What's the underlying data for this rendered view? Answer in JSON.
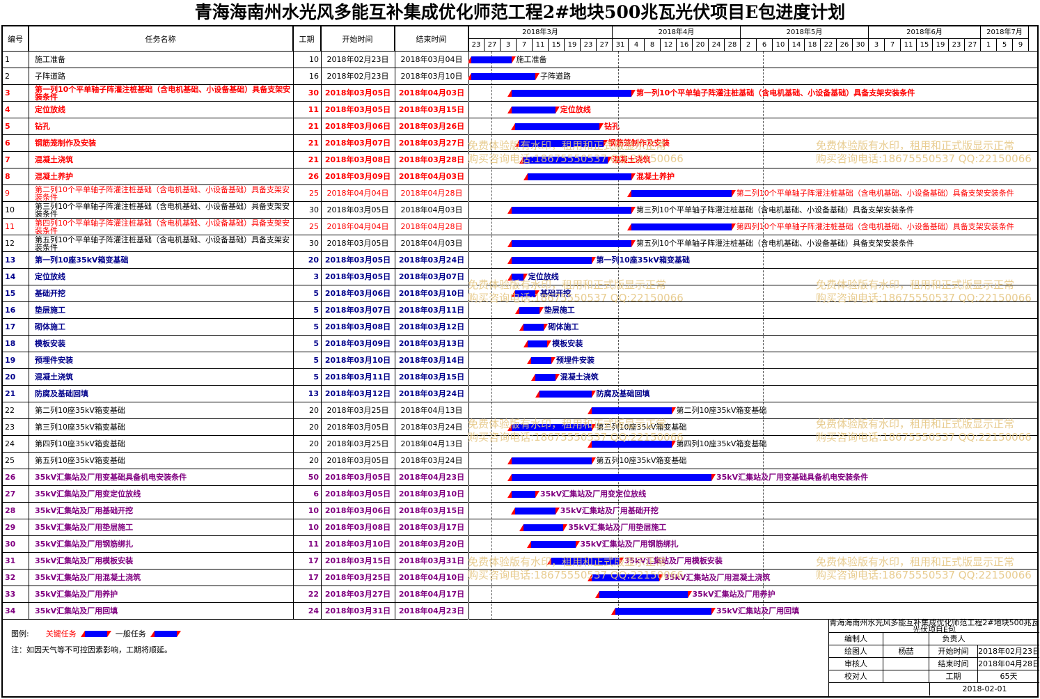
{
  "title": "青海海南州水光风多能互补集成优化师范工程2#地块500兆瓦光伏项目E包进度计划",
  "columns": {
    "id": "编号",
    "name": "任务名称",
    "duration": "工期",
    "start": "开始时间",
    "end": "结束时间"
  },
  "months": [
    {
      "label": "2018年3月",
      "days": [
        "23",
        "27",
        "3",
        "7",
        "11",
        "15",
        "19",
        "23",
        "27"
      ]
    },
    {
      "label": "2018年4月",
      "days": [
        "31",
        "4",
        "8",
        "12",
        "16",
        "20",
        "24",
        "28"
      ]
    },
    {
      "label": "2018年5月",
      "days": [
        "2",
        "6",
        "10",
        "14",
        "18",
        "22",
        "26",
        "30"
      ]
    },
    {
      "label": "2018年6月",
      "days": [
        "3",
        "7",
        "11",
        "15",
        "19",
        "23",
        "27"
      ]
    },
    {
      "label": "2018年7月",
      "days": [
        "1",
        "5",
        "9"
      ]
    }
  ],
  "tasks": [
    {
      "id": "1",
      "name": "施工准备",
      "duration": "10",
      "start": "2018年02月23日",
      "end": "2018年03月04日",
      "style": "normal",
      "bar_label": "施工准备",
      "start_day": 0,
      "length_days": 10
    },
    {
      "id": "2",
      "name": "子阵道路",
      "duration": "16",
      "start": "2018年02月23日",
      "end": "2018年03月10日",
      "style": "normal",
      "bar_label": "子阵道路",
      "start_day": 0,
      "length_days": 16
    },
    {
      "id": "3",
      "name": "第一列10个平单轴子阵灌注桩基础（含电机基础、小设备基础）具备支架安装条件",
      "duration": "30",
      "start": "2018年03月05日",
      "end": "2018年04月03日",
      "style": "crit",
      "bar_label": "第一列10个平单轴子阵灌注桩基础（含电机基础、小设备基础）具备支架安装条件",
      "start_day": 10,
      "length_days": 30
    },
    {
      "id": "4",
      "name": "定位放线",
      "duration": "11",
      "start": "2018年03月05日",
      "end": "2018年03月15日",
      "style": "crit",
      "bar_label": "定位放线",
      "start_day": 10,
      "length_days": 11
    },
    {
      "id": "5",
      "name": "钻孔",
      "duration": "21",
      "start": "2018年03月06日",
      "end": "2018年03月26日",
      "style": "crit",
      "bar_label": "钻孔",
      "start_day": 11,
      "length_days": 21
    },
    {
      "id": "6",
      "name": "钢筋笼制作及安装",
      "duration": "21",
      "start": "2018年03月07日",
      "end": "2018年03月27日",
      "style": "crit",
      "bar_label": "钢筋笼制作及安装",
      "start_day": 12,
      "length_days": 21
    },
    {
      "id": "7",
      "name": "混凝土浇筑",
      "duration": "21",
      "start": "2018年03月08日",
      "end": "2018年03月28日",
      "style": "crit",
      "bar_label": "混凝土浇筑",
      "start_day": 13,
      "length_days": 21
    },
    {
      "id": "8",
      "name": "混凝土养护",
      "duration": "26",
      "start": "2018年03月09日",
      "end": "2018年04月03日",
      "style": "crit",
      "bar_label": "混凝土养护",
      "start_day": 14,
      "length_days": 26
    },
    {
      "id": "9",
      "name": "第二列10个平单轴子阵灌注桩基础（含电机基础、小设备基础）具备支架安装条件",
      "duration": "25",
      "start": "2018年04月04日",
      "end": "2018年04月28日",
      "style": "crit-light",
      "bar_label": "第二列10个平单轴子阵灌注桩基础（含电机基础、小设备基础）具备支架安装条件",
      "start_day": 40,
      "length_days": 25
    },
    {
      "id": "10",
      "name": "第三列10个平单轴子阵灌注桩基础（含电机基础、小设备基础）具备支架安装条件",
      "duration": "30",
      "start": "2018年03月05日",
      "end": "2018年04月03日",
      "style": "normal",
      "bar_label": "第三列10个平单轴子阵灌注桩基础（含电机基础、小设备基础）具备支架安装条件",
      "start_day": 10,
      "length_days": 30
    },
    {
      "id": "11",
      "name": "第四列10个平单轴子阵灌注桩基础（含电机基础、小设备基础）具备支架安装条件",
      "duration": "25",
      "start": "2018年04月04日",
      "end": "2018年04月28日",
      "style": "crit-light",
      "bar_label": "第四列10个平单轴子阵灌注桩基础（含电机基础、小设备基础）具备支架安装条件",
      "start_day": 40,
      "length_days": 25
    },
    {
      "id": "12",
      "name": "第五列10个平单轴子阵灌注桩基础（含电机基础、小设备基础）具备支架安装条件",
      "duration": "30",
      "start": "2018年03月05日",
      "end": "2018年04月03日",
      "style": "normal",
      "bar_label": "第五列10个平单轴子阵灌注桩基础（含电机基础、小设备基础）具备支架安装条件",
      "start_day": 10,
      "length_days": 30
    },
    {
      "id": "13",
      "name": "第一列10座35kV箱变基础",
      "duration": "20",
      "start": "2018年03月05日",
      "end": "2018年03月24日",
      "style": "blue",
      "bar_label": "第一列10座35kV箱变基础",
      "start_day": 10,
      "length_days": 20
    },
    {
      "id": "14",
      "name": "定位放线",
      "duration": "3",
      "start": "2018年03月05日",
      "end": "2018年03月07日",
      "style": "blue",
      "bar_label": "定位放线",
      "start_day": 10,
      "length_days": 3
    },
    {
      "id": "15",
      "name": "基础开挖",
      "duration": "5",
      "start": "2018年03月06日",
      "end": "2018年03月10日",
      "style": "blue",
      "bar_label": "基础开挖",
      "start_day": 11,
      "length_days": 5
    },
    {
      "id": "16",
      "name": "垫层施工",
      "duration": "5",
      "start": "2018年03月07日",
      "end": "2018年03月11日",
      "style": "blue",
      "bar_label": "垫层施工",
      "start_day": 12,
      "length_days": 5
    },
    {
      "id": "17",
      "name": "砌体施工",
      "duration": "5",
      "start": "2018年03月08日",
      "end": "2018年03月12日",
      "style": "blue",
      "bar_label": "砌体施工",
      "start_day": 13,
      "length_days": 5
    },
    {
      "id": "18",
      "name": "模板安装",
      "duration": "5",
      "start": "2018年03月09日",
      "end": "2018年03月13日",
      "style": "blue",
      "bar_label": "模板安装",
      "start_day": 14,
      "length_days": 5
    },
    {
      "id": "19",
      "name": "预埋件安装",
      "duration": "5",
      "start": "2018年03月10日",
      "end": "2018年03月14日",
      "style": "blue",
      "bar_label": "预埋件安装",
      "start_day": 15,
      "length_days": 5
    },
    {
      "id": "20",
      "name": "混凝土浇筑",
      "duration": "5",
      "start": "2018年03月11日",
      "end": "2018年03月15日",
      "style": "blue",
      "bar_label": "混凝土浇筑",
      "start_day": 16,
      "length_days": 5
    },
    {
      "id": "21",
      "name": "防腐及基础回填",
      "duration": "13",
      "start": "2018年03月12日",
      "end": "2018年03月24日",
      "style": "blue",
      "bar_label": "防腐及基础回填",
      "start_day": 17,
      "length_days": 13
    },
    {
      "id": "22",
      "name": "第二列10座35kV箱变基础",
      "duration": "20",
      "start": "2018年03月25日",
      "end": "2018年04月13日",
      "style": "normal",
      "bar_label": "第二列10座35kV箱变基础",
      "start_day": 30,
      "length_days": 20
    },
    {
      "id": "23",
      "name": "第三列10座35kV箱变基础",
      "duration": "20",
      "start": "2018年03月05日",
      "end": "2018年03月24日",
      "style": "normal",
      "bar_label": "第三列10座35kV箱变基础",
      "start_day": 10,
      "length_days": 20
    },
    {
      "id": "24",
      "name": "第四列10座35kV箱变基础",
      "duration": "20",
      "start": "2018年03月25日",
      "end": "2018年04月13日",
      "style": "normal",
      "bar_label": "第四列10座35kV箱变基础",
      "start_day": 30,
      "length_days": 20
    },
    {
      "id": "25",
      "name": "第五列10座35kV箱变基础",
      "duration": "20",
      "start": "2018年03月05日",
      "end": "2018年03月24日",
      "style": "normal",
      "bar_label": "第五列10座35kV箱变基础",
      "start_day": 10,
      "length_days": 20
    },
    {
      "id": "26",
      "name": "35kV汇集站及厂用变基础具备机电安装条件",
      "duration": "50",
      "start": "2018年03月05日",
      "end": "2018年04月23日",
      "style": "purple",
      "bar_label": "35kV汇集站及厂用变基础具备机电安装条件",
      "start_day": 10,
      "length_days": 50
    },
    {
      "id": "27",
      "name": "35kV汇集站及厂用变定位放线",
      "duration": "6",
      "start": "2018年03月05日",
      "end": "2018年03月10日",
      "style": "purple",
      "bar_label": "35kV汇集站及厂用变定位放线",
      "start_day": 10,
      "length_days": 6
    },
    {
      "id": "28",
      "name": "35kV汇集站及厂用基础开挖",
      "duration": "10",
      "start": "2018年03月06日",
      "end": "2018年03月15日",
      "style": "purple",
      "bar_label": "35kV汇集站及厂用基础开挖",
      "start_day": 11,
      "length_days": 10
    },
    {
      "id": "29",
      "name": "35kV汇集站及厂用垫层施工",
      "duration": "10",
      "start": "2018年03月08日",
      "end": "2018年03月17日",
      "style": "purple",
      "bar_label": "35kV汇集站及厂用垫层施工",
      "start_day": 13,
      "length_days": 10
    },
    {
      "id": "30",
      "name": "35kV汇集站及厂用钢筋绑扎",
      "duration": "11",
      "start": "2018年03月10日",
      "end": "2018年03月20日",
      "style": "purple",
      "bar_label": "35kV汇集站及厂用钢筋绑扎",
      "start_day": 15,
      "length_days": 11
    },
    {
      "id": "31",
      "name": "35kV汇集站及厂用模板安装",
      "duration": "17",
      "start": "2018年03月15日",
      "end": "2018年03月31日",
      "style": "purple",
      "bar_label": "35kV汇集站及厂用模板安装",
      "start_day": 20,
      "length_days": 17
    },
    {
      "id": "32",
      "name": "35kV汇集站及厂用混凝土浇筑",
      "duration": "17",
      "start": "2018年03月25日",
      "end": "2018年04月10日",
      "style": "purple",
      "bar_label": "35kV汇集站及厂用混凝土浇筑",
      "start_day": 30,
      "length_days": 17
    },
    {
      "id": "33",
      "name": "35kV汇集站及厂用养护",
      "duration": "22",
      "start": "2018年03月27日",
      "end": "2018年04月17日",
      "style": "purple",
      "bar_label": "35kV汇集站及厂用养护",
      "start_day": 32,
      "length_days": 22
    },
    {
      "id": "34",
      "name": "35kV汇集站及厂用回填",
      "duration": "24",
      "start": "2018年03月31日",
      "end": "2018年04月23日",
      "style": "purple",
      "bar_label": "35kV汇集站及厂用回填",
      "start_day": 36,
      "length_days": 24
    }
  ],
  "watermark": {
    "line1": "免费体验版有水印，租用和正式版显示正常",
    "line2": "购买咨询电话:18675550537 QQ:22150066"
  },
  "legend": {
    "label": "图例:",
    "critical": "关键任务",
    "general": "一般任务",
    "note": "注：如因天气等不可控因素影响，工期将顺延。"
  },
  "info": {
    "project": "青海海南州水光风多能互补集成优化师范工程2#地块500兆瓦光伏项目E包",
    "made_by_label": "编制人",
    "made_by": "",
    "owner_label": "负责人",
    "owner": "",
    "drawn_by_label": "绘图人",
    "drawn_by": "杨喆",
    "start_label": "开始时间",
    "start": "2018年02月23日",
    "reviewer_label": "审核人",
    "reviewer": "",
    "end_label": "结束时间",
    "end": "2018年04月28日",
    "checker_label": "校对人",
    "checker": "",
    "duration_label": "工期",
    "duration": "65天",
    "date": "2018-02-01"
  }
}
